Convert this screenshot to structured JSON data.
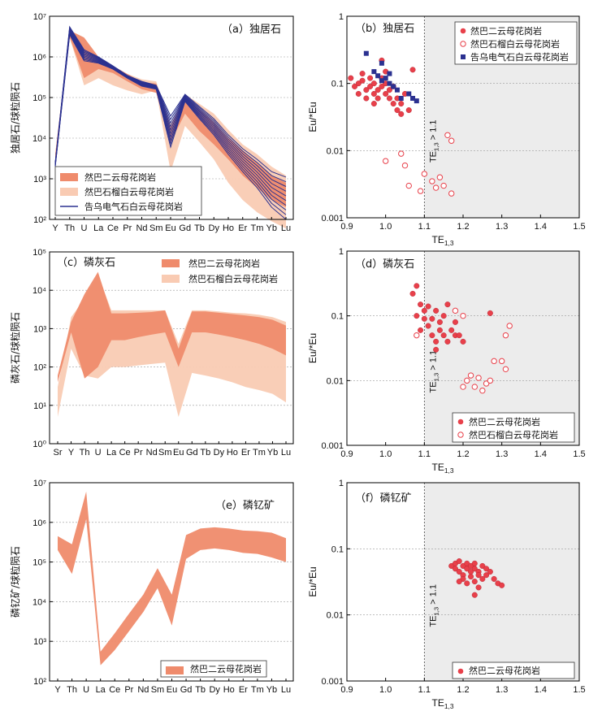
{
  "chart_data": [
    {
      "id": "a",
      "type": "area",
      "title": "（a）独居石",
      "ylabel": "独居石/球粒陨石",
      "categories": [
        "Y",
        "Th",
        "U",
        "La",
        "Ce",
        "Pr",
        "Nd",
        "Sm",
        "Eu",
        "Gd",
        "Tb",
        "Dy",
        "Ho",
        "Er",
        "Tm",
        "Yb",
        "Lu"
      ],
      "ylim": [
        100,
        10000000
      ],
      "ytick_labels": [
        "10²",
        "10³",
        "10⁴",
        "10⁵",
        "10⁶",
        "10⁷"
      ],
      "legend": [
        "然巴二云母花岗岩",
        "然巴石榴白云母花岗岩",
        "告乌电气石白云母花岗岩"
      ],
      "series": [
        {
          "name": "然巴石榴白云母花岗岩",
          "style": "band",
          "color": "#f9cbb3",
          "upper": [
            4000,
            4000000,
            2000000,
            1000000,
            600000,
            380000,
            280000,
            250000,
            22000,
            120000,
            70000,
            40000,
            16000,
            7000,
            4000,
            2000,
            1200
          ],
          "lower": [
            3000,
            3000000,
            200000,
            300000,
            200000,
            150000,
            120000,
            150000,
            1500,
            20000,
            8000,
            3000,
            800,
            300,
            150,
            90,
            60
          ]
        },
        {
          "name": "然巴二云母花岗岩",
          "style": "band",
          "color": "#ef8b6c",
          "upper": [
            4000,
            4500000,
            3000000,
            1000000,
            600000,
            380000,
            240000,
            220000,
            18000,
            110000,
            50000,
            25000,
            10000,
            5000,
            2500,
            1200,
            800
          ],
          "lower": [
            2000,
            3000000,
            300000,
            500000,
            400000,
            250000,
            160000,
            130000,
            8000,
            40000,
            15000,
            7000,
            3000,
            1200,
            600,
            300,
            200
          ]
        },
        {
          "name": "告乌电气石白云母花岗岩",
          "style": "lines",
          "color": "#2b3190",
          "upper": [
            2500,
            5500000,
            1500000,
            1000000,
            600000,
            350000,
            250000,
            200000,
            35000,
            120000,
            60000,
            30000,
            12000,
            5500,
            3000,
            1500,
            1100
          ],
          "lower": [
            2000,
            3500000,
            800000,
            700000,
            500000,
            300000,
            190000,
            160000,
            6000,
            80000,
            30000,
            12000,
            4000,
            1500,
            600,
            200,
            100
          ]
        }
      ]
    },
    {
      "id": "b",
      "type": "scatter",
      "title": "（b）独居石",
      "xlabel": "TE1,3",
      "ylabel": "Eu/*Eu",
      "xlim": [
        0.9,
        1.5
      ],
      "ylim": [
        0.001,
        1
      ],
      "xtick_labels": [
        "0.9",
        "1.0",
        "1.1",
        "1.2",
        "1.3",
        "1.4",
        "1.5"
      ],
      "ytick_labels": [
        "0.001",
        "0.01",
        "0.1",
        "1"
      ],
      "threshold_label": "TE1,3 > 1.1",
      "threshold_x": 1.1,
      "series": [
        {
          "name": "然巴二云母花岗岩",
          "marker": "filled-circle",
          "color": "#e8404a",
          "points": [
            [
              0.91,
              0.12
            ],
            [
              0.92,
              0.09
            ],
            [
              0.93,
              0.1
            ],
            [
              0.93,
              0.07
            ],
            [
              0.94,
              0.11
            ],
            [
              0.95,
              0.08
            ],
            [
              0.95,
              0.06
            ],
            [
              0.96,
              0.12
            ],
            [
              0.96,
              0.09
            ],
            [
              0.97,
              0.07
            ],
            [
              0.97,
              0.1
            ],
            [
              0.98,
              0.06
            ],
            [
              0.98,
              0.08
            ],
            [
              0.99,
              0.12
            ],
            [
              0.99,
              0.09
            ],
            [
              1.0,
              0.1
            ],
            [
              1.0,
              0.07
            ],
            [
              1.01,
              0.06
            ],
            [
              1.01,
              0.08
            ],
            [
              1.02,
              0.05
            ],
            [
              1.02,
              0.09
            ],
            [
              1.03,
              0.04
            ],
            [
              1.03,
              0.06
            ],
            [
              1.04,
              0.05
            ],
            [
              1.04,
              0.035
            ],
            [
              1.05,
              0.07
            ],
            [
              1.06,
              0.04
            ],
            [
              1.07,
              0.16
            ],
            [
              0.99,
              0.22
            ],
            [
              0.94,
              0.14
            ],
            [
              1.0,
              0.15
            ],
            [
              0.97,
              0.05
            ]
          ]
        },
        {
          "name": "然巴石榴白云母花岗岩",
          "marker": "open-circle",
          "color": "#e8404a",
          "points": [
            [
              1.04,
              0.009
            ],
            [
              1.05,
              0.006
            ],
            [
              1.0,
              0.007
            ],
            [
              1.06,
              0.003
            ],
            [
              1.09,
              0.0025
            ],
            [
              1.1,
              0.0045
            ],
            [
              1.12,
              0.0035
            ],
            [
              1.13,
              0.0028
            ],
            [
              1.14,
              0.004
            ],
            [
              1.15,
              0.003
            ],
            [
              1.16,
              0.017
            ],
            [
              1.17,
              0.014
            ],
            [
              1.17,
              0.0023
            ]
          ]
        },
        {
          "name": "告乌电气石白云母花岗岩",
          "marker": "filled-square",
          "color": "#2b3190",
          "points": [
            [
              0.95,
              0.28
            ],
            [
              0.97,
              0.15
            ],
            [
              0.98,
              0.13
            ],
            [
              0.99,
              0.2
            ],
            [
              1.0,
              0.12
            ],
            [
              1.01,
              0.14
            ],
            [
              1.02,
              0.09
            ],
            [
              1.03,
              0.08
            ],
            [
              1.04,
              0.06
            ],
            [
              1.06,
              0.07
            ],
            [
              1.07,
              0.06
            ],
            [
              1.08,
              0.055
            ],
            [
              0.99,
              0.11
            ],
            [
              1.01,
              0.1
            ]
          ]
        }
      ]
    },
    {
      "id": "c",
      "type": "area",
      "title": "（c）磷灰石",
      "ylabel": "磷灰石/球粒陨石",
      "categories": [
        "Sr",
        "Y",
        "Th",
        "U",
        "La",
        "Ce",
        "Pr",
        "Nd",
        "Sm",
        "Eu",
        "Gd",
        "Tb",
        "Dy",
        "Ho",
        "Er",
        "Tm",
        "Yb",
        "Lu"
      ],
      "ylim": [
        1,
        100000
      ],
      "ytick_labels": [
        "10⁰",
        "10¹",
        "10²",
        "10³",
        "10⁴",
        "10⁵"
      ],
      "legend": [
        "然巴二云母花岗岩",
        "然巴石榴白云母花岗岩"
      ],
      "series": [
        {
          "name": "然巴石榴白云母花岗岩",
          "style": "band",
          "color": "#f9cbb3",
          "upper": [
            30,
            2000,
            6000,
            25000,
            3000,
            3000,
            3000,
            3000,
            3000,
            400,
            3000,
            3000,
            2800,
            2600,
            2500,
            2300,
            2000,
            1500
          ],
          "lower": [
            5,
            300,
            60,
            50,
            100,
            100,
            110,
            120,
            130,
            5,
            70,
            60,
            50,
            40,
            30,
            25,
            20,
            12
          ]
        },
        {
          "name": "然巴二云母花岗岩",
          "style": "band",
          "color": "#ef8b6c",
          "upper": [
            60,
            1500,
            8000,
            30000,
            2500,
            2500,
            2600,
            2700,
            3000,
            300,
            2800,
            2800,
            2600,
            2400,
            2200,
            2000,
            1700,
            1200
          ],
          "lower": [
            40,
            800,
            50,
            100,
            500,
            500,
            600,
            700,
            800,
            100,
            800,
            800,
            700,
            600,
            500,
            400,
            300,
            200
          ]
        }
      ]
    },
    {
      "id": "d",
      "type": "scatter",
      "title": "（d）磷灰石",
      "xlabel": "TE1,3",
      "ylabel": "Eu/*Eu",
      "xlim": [
        0.9,
        1.5
      ],
      "ylim": [
        0.001,
        1
      ],
      "xtick_labels": [
        "0.9",
        "1.0",
        "1.1",
        "1.2",
        "1.3",
        "1.4",
        "1.5"
      ],
      "ytick_labels": [
        "0.001",
        "0.01",
        "0.1",
        "1"
      ],
      "threshold_label": "TE1,3 > 1.1",
      "threshold_x": 1.1,
      "series": [
        {
          "name": "然巴二云母花岗岩",
          "marker": "filled-circle",
          "color": "#e8404a",
          "points": [
            [
              1.07,
              0.22
            ],
            [
              1.08,
              0.29
            ],
            [
              1.08,
              0.1
            ],
            [
              1.09,
              0.15
            ],
            [
              1.09,
              0.06
            ],
            [
              1.1,
              0.12
            ],
            [
              1.11,
              0.07
            ],
            [
              1.12,
              0.05
            ],
            [
              1.12,
              0.09
            ],
            [
              1.13,
              0.12
            ],
            [
              1.13,
              0.04
            ],
            [
              1.14,
              0.06
            ],
            [
              1.14,
              0.08
            ],
            [
              1.15,
              0.05
            ],
            [
              1.15,
              0.1
            ],
            [
              1.16,
              0.04
            ],
            [
              1.16,
              0.15
            ],
            [
              1.17,
              0.06
            ],
            [
              1.18,
              0.05
            ],
            [
              1.18,
              0.08
            ],
            [
              1.19,
              0.05
            ],
            [
              1.2,
              0.04
            ],
            [
              1.27,
              0.11
            ],
            [
              1.1,
              0.09
            ],
            [
              1.11,
              0.14
            ],
            [
              1.13,
              0.03
            ]
          ]
        },
        {
          "name": "然巴石榴白云母花岗岩",
          "marker": "open-circle",
          "color": "#e8404a",
          "points": [
            [
              1.08,
              0.05
            ],
            [
              1.18,
              0.12
            ],
            [
              1.2,
              0.1
            ],
            [
              1.21,
              0.01
            ],
            [
              1.22,
              0.012
            ],
            [
              1.23,
              0.008
            ],
            [
              1.24,
              0.011
            ],
            [
              1.25,
              0.007
            ],
            [
              1.26,
              0.009
            ],
            [
              1.27,
              0.01
            ],
            [
              1.28,
              0.02
            ],
            [
              1.3,
              0.02
            ],
            [
              1.31,
              0.015
            ],
            [
              1.31,
              0.05
            ],
            [
              1.32,
              0.07
            ],
            [
              1.2,
              0.008
            ]
          ]
        }
      ]
    },
    {
      "id": "e",
      "type": "area",
      "title": "（e）磷钇矿",
      "ylabel": "磷钇矿/球粒陨石",
      "categories": [
        "Y",
        "Th",
        "U",
        "La",
        "Ce",
        "Pr",
        "Nd",
        "Sm",
        "Eu",
        "Gd",
        "Tb",
        "Dy",
        "Ho",
        "Er",
        "Tm",
        "Yb",
        "Lu"
      ],
      "ylim": [
        100,
        10000000
      ],
      "ytick_labels": [
        "10²",
        "10³",
        "10⁴",
        "10⁵",
        "10⁶",
        "10⁷"
      ],
      "legend": [
        "然巴二云母花岗岩"
      ],
      "series": [
        {
          "name": "然巴二云母花岗岩",
          "style": "band",
          "color": "#ef8b6c",
          "upper": [
            450000,
            280000,
            6000000,
            550,
            1600,
            5000,
            15000,
            70000,
            15000,
            480000,
            700000,
            750000,
            700000,
            620000,
            600000,
            550000,
            400000
          ],
          "lower": [
            200000,
            50000,
            1200000,
            250,
            600,
            1800,
            5500,
            22000,
            2500,
            120000,
            200000,
            220000,
            200000,
            170000,
            160000,
            130000,
            100000
          ]
        }
      ]
    },
    {
      "id": "f",
      "type": "scatter",
      "title": "（f）磷钇矿",
      "xlabel": "TE1,3",
      "ylabel": "Eu/*Eu",
      "xlim": [
        0.9,
        1.5
      ],
      "ylim": [
        0.001,
        1
      ],
      "xtick_labels": [
        "0.9",
        "1.0",
        "1.1",
        "1.2",
        "1.3",
        "1.4",
        "1.5"
      ],
      "ytick_labels": [
        "0.001",
        "0.01",
        "0.1",
        "1"
      ],
      "threshold_label": "TE1,3 > 1.1",
      "threshold_x": 1.1,
      "series": [
        {
          "name": "然巴二云母花岗岩",
          "marker": "filled-circle",
          "color": "#e8404a",
          "points": [
            [
              1.17,
              0.055
            ],
            [
              1.18,
              0.05
            ],
            [
              1.18,
              0.06
            ],
            [
              1.19,
              0.045
            ],
            [
              1.19,
              0.065
            ],
            [
              1.2,
              0.04
            ],
            [
              1.2,
              0.055
            ],
            [
              1.2,
              0.035
            ],
            [
              1.21,
              0.05
            ],
            [
              1.21,
              0.06
            ],
            [
              1.21,
              0.03
            ],
            [
              1.22,
              0.045
            ],
            [
              1.22,
              0.055
            ],
            [
              1.22,
              0.038
            ],
            [
              1.23,
              0.05
            ],
            [
              1.23,
              0.032
            ],
            [
              1.23,
              0.06
            ],
            [
              1.24,
              0.045
            ],
            [
              1.24,
              0.04
            ],
            [
              1.25,
              0.055
            ],
            [
              1.25,
              0.035
            ],
            [
              1.26,
              0.05
            ],
            [
              1.26,
              0.04
            ],
            [
              1.27,
              0.045
            ],
            [
              1.28,
              0.035
            ],
            [
              1.29,
              0.03
            ],
            [
              1.3,
              0.028
            ],
            [
              1.23,
              0.02
            ],
            [
              1.24,
              0.026
            ],
            [
              1.19,
              0.032
            ]
          ]
        }
      ]
    }
  ]
}
